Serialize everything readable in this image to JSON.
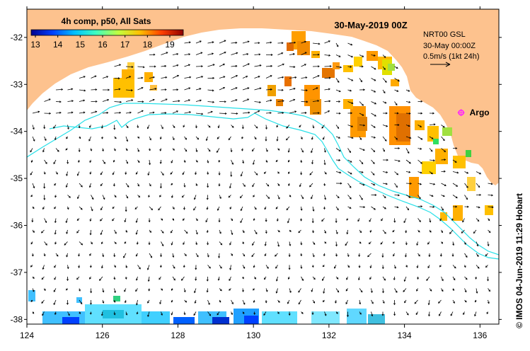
{
  "map": {
    "title": "30-May-2019 00Z",
    "product_label": "4h comp, p50, All Sats",
    "colorbar": {
      "ticks": [
        "13",
        "14",
        "15",
        "16",
        "17",
        "18",
        "19"
      ],
      "stops": [
        "#00008f",
        "#0040ff",
        "#00c0ff",
        "#40ffbf",
        "#c0ff40",
        "#ffc000",
        "#ff4000",
        "#8f0000"
      ]
    },
    "current_info": {
      "source": "NRT00 GSL",
      "time": "30-May 00:00Z",
      "scale": "0.5m/s (1kt 24h)"
    },
    "argo": {
      "label": "Argo",
      "lon": 135.5,
      "lat": -33.6
    },
    "credit": "© IMOS 04-Jun-2019 11:29 Hobart",
    "x_ticks": [
      "124",
      "126",
      "128",
      "130",
      "132",
      "134",
      "136"
    ],
    "y_ticks": [
      "-32",
      "-33",
      "-34",
      "-35",
      "-36",
      "-37",
      "-38"
    ],
    "lon_range": [
      124,
      136.5
    ],
    "lat_range": [
      -38.1,
      -31.4
    ],
    "colors": {
      "land": "#fdc28e",
      "ocean": "#ffffff",
      "contour": "#26e0e8",
      "argo": "#ff20ff"
    }
  }
}
